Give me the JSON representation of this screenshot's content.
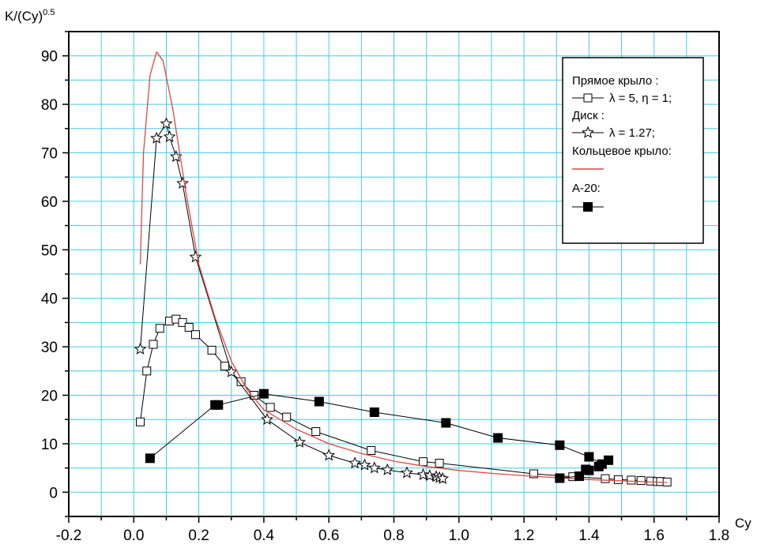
{
  "chart_data": {
    "type": "line",
    "xlabel": "Cy",
    "ylabel": {
      "base": "K/(Cy)",
      "exponent": "0.5"
    },
    "xlim": [
      -0.2,
      1.8
    ],
    "ylim": [
      -5,
      95
    ],
    "x_ticks": [
      -0.2,
      0.0,
      0.2,
      0.4,
      0.6,
      0.8,
      1.0,
      1.2,
      1.4,
      1.6,
      1.8
    ],
    "x_tick_labels": [
      "-0.2",
      "0.0",
      "0.2",
      "0.4",
      "0.6",
      "0.8",
      "1.0",
      "1.2",
      "1.4",
      "1.6",
      "1.8"
    ],
    "y_ticks": [
      0,
      10,
      20,
      30,
      40,
      50,
      60,
      70,
      80,
      90
    ],
    "y_tick_labels": [
      "0",
      "10",
      "20",
      "30",
      "40",
      "50",
      "60",
      "70",
      "80",
      "90"
    ],
    "grid": true,
    "grid_color": "#3fd0e6",
    "legend_position": "top-right",
    "legend": {
      "items": [
        {
          "text": "Прямое крыло :"
        },
        {
          "text": "λ = 5, η = 1;",
          "marker": "open-square"
        },
        {
          "text": "Диск :"
        },
        {
          "text": "λ = 1.27;",
          "marker": "open-star"
        },
        {
          "text": "Кольцевое крыло:"
        },
        {
          "text": "",
          "marker": "red-line"
        },
        {
          "text": "А-20:"
        },
        {
          "text": "",
          "marker": "filled-square"
        }
      ]
    },
    "series": [
      {
        "marker": "open-square",
        "color": "#000000",
        "points": [
          [
            0.02,
            14.5
          ],
          [
            0.04,
            25
          ],
          [
            0.06,
            30.5
          ],
          [
            0.08,
            33.8
          ],
          [
            0.11,
            35.3
          ],
          [
            0.13,
            35.7
          ],
          [
            0.15,
            35.0
          ],
          [
            0.17,
            34.0
          ],
          [
            0.19,
            32.5
          ],
          [
            0.24,
            29.3
          ],
          [
            0.28,
            26.0
          ],
          [
            0.33,
            22.8
          ],
          [
            0.37,
            20.0
          ],
          [
            0.42,
            17.5
          ],
          [
            0.47,
            15.5
          ],
          [
            0.56,
            12.5
          ],
          [
            0.73,
            8.6
          ],
          [
            0.89,
            6.3
          ],
          [
            0.94,
            6.0
          ],
          [
            1.23,
            3.8
          ],
          [
            1.35,
            3.2
          ],
          [
            1.45,
            2.8
          ],
          [
            1.49,
            2.6
          ],
          [
            1.53,
            2.5
          ],
          [
            1.56,
            2.4
          ],
          [
            1.59,
            2.3
          ],
          [
            1.61,
            2.2
          ],
          [
            1.62,
            2.2
          ],
          [
            1.64,
            2.1
          ]
        ]
      },
      {
        "marker": "open-star",
        "color": "#000000",
        "points": [
          [
            0.02,
            29.5
          ],
          [
            0.07,
            73
          ],
          [
            0.1,
            76
          ],
          [
            0.11,
            73.3
          ],
          [
            0.13,
            69.2
          ],
          [
            0.15,
            63.7
          ],
          [
            0.19,
            48.5
          ],
          [
            0.3,
            24.8
          ],
          [
            0.41,
            15.0
          ],
          [
            0.51,
            10.3
          ],
          [
            0.6,
            7.6
          ],
          [
            0.68,
            6.0
          ],
          [
            0.71,
            5.6
          ],
          [
            0.74,
            5.0
          ],
          [
            0.78,
            4.6
          ],
          [
            0.84,
            4.0
          ],
          [
            0.89,
            3.6
          ],
          [
            0.91,
            3.4
          ],
          [
            0.93,
            3.2
          ],
          [
            0.94,
            3.0
          ],
          [
            0.95,
            2.8
          ]
        ]
      },
      {
        "marker": "none",
        "color": "#e0473f",
        "points": [
          [
            0.02,
            47
          ],
          [
            0.03,
            70
          ],
          [
            0.05,
            86
          ],
          [
            0.07,
            90.8
          ],
          [
            0.09,
            89
          ],
          [
            0.12,
            79
          ],
          [
            0.16,
            62
          ],
          [
            0.2,
            47
          ],
          [
            0.25,
            36
          ],
          [
            0.3,
            27
          ],
          [
            0.35,
            21
          ],
          [
            0.4,
            17
          ],
          [
            0.5,
            13
          ],
          [
            0.6,
            10
          ],
          [
            0.7,
            8
          ],
          [
            0.8,
            6.4
          ],
          [
            0.9,
            5.3
          ],
          [
            1.0,
            4.5
          ],
          [
            1.1,
            3.9
          ],
          [
            1.2,
            3.4
          ],
          [
            1.3,
            3.0
          ],
          [
            1.4,
            2.6
          ],
          [
            1.5,
            2.35
          ],
          [
            1.6,
            2.1
          ],
          [
            1.64,
            2.0
          ]
        ]
      },
      {
        "marker": "filled-square",
        "color": "#000000",
        "points": [
          [
            0.05,
            7.0
          ],
          [
            0.25,
            18.0
          ],
          [
            0.26,
            18.0
          ],
          [
            0.4,
            20.3
          ],
          [
            0.57,
            18.7
          ],
          [
            0.74,
            16.5
          ],
          [
            0.96,
            14.3
          ],
          [
            1.12,
            11.2
          ],
          [
            1.31,
            9.7
          ],
          [
            1.4,
            7.3
          ],
          [
            1.44,
            5.8
          ],
          [
            1.46,
            6.6
          ],
          [
            1.43,
            5.3
          ],
          [
            1.4,
            4.5
          ],
          [
            1.39,
            4.7
          ],
          [
            1.37,
            3.3
          ],
          [
            1.31,
            2.9
          ]
        ]
      }
    ]
  }
}
